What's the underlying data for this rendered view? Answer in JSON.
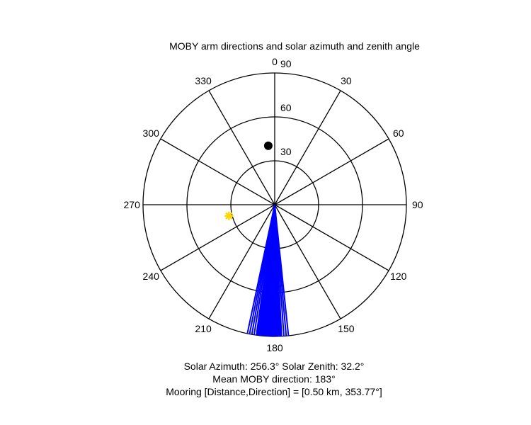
{
  "chart_data": {
    "type": "polar",
    "title": "MOBY arm directions and solar azimuth and zenith angle",
    "zero_direction": "top",
    "rotation": "clockwise",
    "r_range": [
      0,
      90
    ],
    "radial_ticks": [
      "30",
      "60",
      "90"
    ],
    "angle_ticks": [
      "0",
      "30",
      "60",
      "90",
      "120",
      "150",
      "180",
      "210",
      "240",
      "270",
      "300",
      "330"
    ],
    "grid": true,
    "series": [
      {
        "kind": "radial_lines",
        "color": "#0000ff",
        "r": 90,
        "angles": [
          174.0,
          175.0,
          176.0,
          177.0,
          177.5,
          178.0,
          178.5,
          179.0,
          179.5,
          180.0,
          180.5,
          181.0,
          181.5,
          182.0,
          182.5,
          183.0,
          183.5,
          184.0,
          184.5,
          185.0,
          185.5,
          186.0,
          186.5,
          187.0,
          187.5,
          188.0,
          189.0,
          190.0,
          191.0,
          192.0
        ]
      },
      {
        "kind": "marker",
        "marker": "circle",
        "color": "#000000",
        "angle": 353.77,
        "r": 40.5
      },
      {
        "kind": "marker",
        "marker": "asterisk",
        "color": "#ffd700",
        "angle": 256.3,
        "r": 32.2
      }
    ]
  },
  "captions": {
    "solar_line": "Solar Azimuth: 256.3°   Solar Zenith: 32.2°",
    "moby_line": "Mean MOBY direction: 183°",
    "mooring_line": "Mooring [Distance,Direction] = [0.50 km, 353.77°]"
  }
}
